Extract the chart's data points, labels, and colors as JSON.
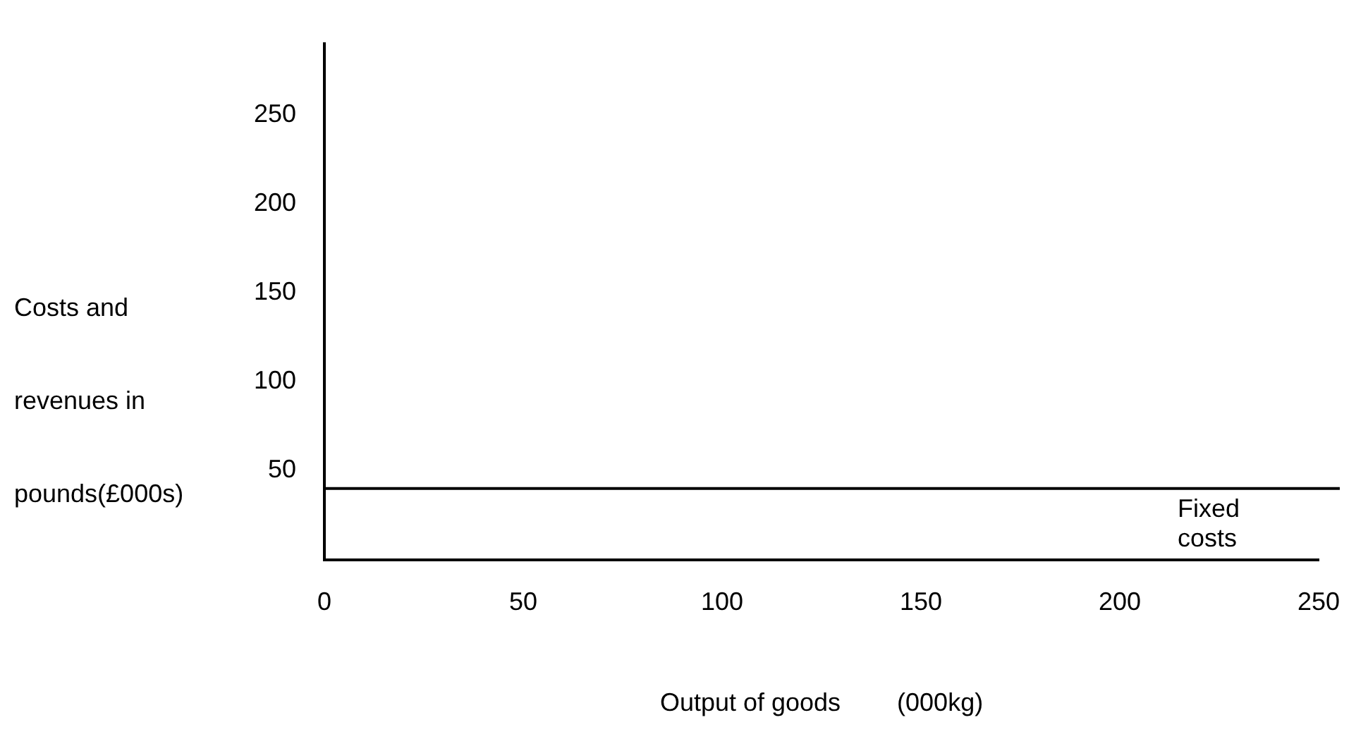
{
  "chart_data": {
    "type": "line",
    "xlabel": "Output of goods        (000kg)",
    "ylabel": "Costs and revenues in pounds(£000s)",
    "xlim": [
      0,
      250
    ],
    "xticks": [
      0,
      50,
      100,
      150,
      200,
      250
    ],
    "ylim": [
      0,
      290
    ],
    "yticks": [
      50,
      100,
      150,
      200,
      250
    ],
    "ref_lines": [
      {
        "axis": "y",
        "value": 40,
        "label": "Fixed costs",
        "color": "#000000"
      }
    ],
    "grid": false
  }
}
